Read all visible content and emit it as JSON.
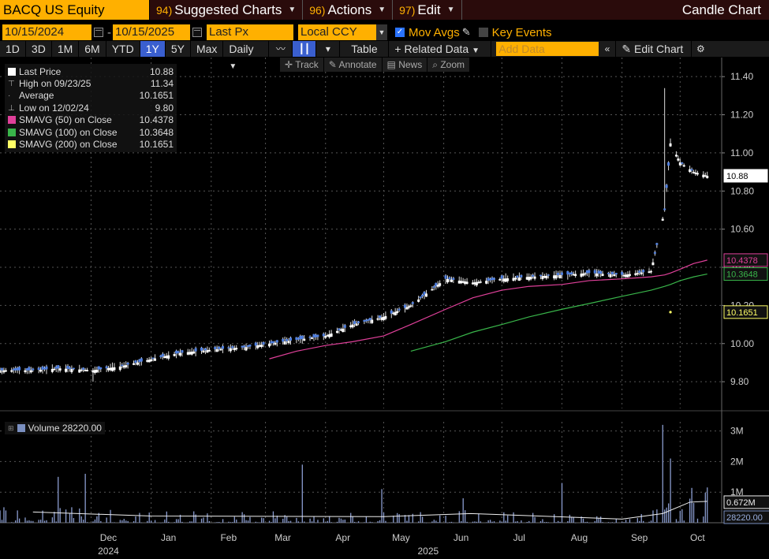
{
  "toolbar": {
    "ticker": "BACQ US Equity",
    "menus": [
      {
        "num": "94)",
        "label": "Suggested Charts"
      },
      {
        "num": "96)",
        "label": "Actions"
      },
      {
        "num": "97)",
        "label": "Edit"
      }
    ],
    "chart_kind": "Candle Chart"
  },
  "settings": {
    "start_date": "10/15/2024",
    "end_date": "10/15/2025",
    "field": "Last Px",
    "currency": "Local CCY",
    "mov_avgs_label": "Mov Avgs",
    "key_events_label": "Key Events"
  },
  "ranges": {
    "buttons": [
      "1D",
      "3D",
      "1M",
      "6M",
      "YTD",
      "1Y",
      "5Y",
      "Max"
    ],
    "selected": "1Y",
    "period": "Daily",
    "table_label": "Table",
    "related_label": "Related Data",
    "add_data_placeholder": "Add Data",
    "edit_chart_label": "Edit Chart"
  },
  "tools": [
    "Track",
    "Annotate",
    "News",
    "Zoom"
  ],
  "legend": [
    {
      "label": "Last Price",
      "value": "10.88",
      "color": "#ffffff"
    },
    {
      "label": "High on 09/23/25",
      "value": "11.34",
      "color": ""
    },
    {
      "label": "Average",
      "value": "10.1651",
      "color": ""
    },
    {
      "label": "Low on 12/02/24",
      "value": "9.80",
      "color": ""
    },
    {
      "label": "SMAVG (50)  on Close",
      "value": "10.4378",
      "color": "#e0409a"
    },
    {
      "label": "SMAVG (100)  on Close",
      "value": "10.3648",
      "color": "#39b54a"
    },
    {
      "label": "SMAVG (200)  on Close",
      "value": "10.1651",
      "color": "#ffff66"
    }
  ],
  "volume_legend": {
    "label": "Volume",
    "value": "28220.00"
  },
  "colors": {
    "accent": "#ffb000",
    "up": "#ffffff",
    "down": "#4f7fe0",
    "sma50": "#e0409a",
    "sma100": "#39b54a",
    "sma200": "#ffff66"
  },
  "chart_data": [
    {
      "type": "line",
      "x": [
        "2024-10-15",
        "2024-11-01",
        "2024-11-15",
        "2024-12-02",
        "2024-12-16",
        "2025-01-02",
        "2025-01-15",
        "2025-02-03",
        "2025-02-18",
        "2025-03-03",
        "2025-03-17",
        "2025-04-01",
        "2025-04-15",
        "2025-05-01",
        "2025-05-15",
        "2025-06-02",
        "2025-06-16",
        "2025-07-01",
        "2025-07-15",
        "2025-08-01",
        "2025-08-15",
        "2025-09-02",
        "2025-09-16",
        "2025-09-23",
        "2025-09-26",
        "2025-10-01",
        "2025-10-08",
        "2025-10-15"
      ],
      "series": [
        {
          "name": "Last Price",
          "values": [
            9.86,
            9.86,
            9.87,
            9.86,
            9.88,
            9.92,
            9.95,
            9.97,
            9.98,
            10.0,
            10.02,
            10.04,
            10.1,
            10.14,
            10.2,
            10.34,
            10.32,
            10.34,
            10.35,
            10.36,
            10.37,
            10.36,
            10.38,
            10.7,
            11.05,
            10.95,
            10.9,
            10.88
          ]
        },
        {
          "name": "SMAVG (50)  on Close",
          "values": [
            null,
            null,
            null,
            null,
            null,
            null,
            null,
            null,
            null,
            9.92,
            9.96,
            9.99,
            10.01,
            10.04,
            10.1,
            10.18,
            10.24,
            10.28,
            10.3,
            10.31,
            10.33,
            10.34,
            10.35,
            10.36,
            10.37,
            10.39,
            10.42,
            10.4378
          ]
        },
        {
          "name": "SMAVG (100)  on Close",
          "values": [
            null,
            null,
            null,
            null,
            null,
            null,
            null,
            null,
            null,
            null,
            null,
            null,
            null,
            null,
            9.96,
            10.01,
            10.06,
            10.1,
            10.14,
            10.18,
            10.21,
            10.25,
            10.28,
            10.3,
            10.31,
            10.33,
            10.35,
            10.3648
          ]
        }
      ],
      "high": {
        "date": "09/23/25",
        "value": 11.34
      },
      "low": {
        "date": "12/02/24",
        "value": 9.8
      },
      "average": 10.1651,
      "last": 10.88,
      "ylim": [
        9.66,
        11.5
      ],
      "yticks": [
        9.8,
        10.0,
        10.2,
        10.4,
        10.6,
        10.8,
        11.0,
        11.2,
        11.4
      ],
      "ytick_labels": [
        "9.80",
        "10.00",
        "10.20",
        "10.40",
        "10.60",
        "10.80",
        "11.00",
        "11.20",
        "11.40"
      ],
      "right_labels": [
        {
          "text": "10.88",
          "value": 10.88,
          "color": "#ffffff"
        },
        {
          "text": "10.4378",
          "value": 10.4378,
          "color": "#e0409a"
        },
        {
          "text": "10.3648",
          "value": 10.3648,
          "color": "#39b54a"
        },
        {
          "text": "10.1651",
          "value": 10.1651,
          "color": "#ffff66"
        }
      ],
      "xticks": [
        {
          "date": "2024-12-01",
          "label": "Dec"
        },
        {
          "date": "2025-01-01",
          "label": "Jan"
        },
        {
          "date": "2025-02-01",
          "label": "Feb"
        },
        {
          "date": "2025-03-01",
          "label": "Mar"
        },
        {
          "date": "2025-04-01",
          "label": "Apr"
        },
        {
          "date": "2025-05-01",
          "label": "May"
        },
        {
          "date": "2025-06-01",
          "label": "Jun"
        },
        {
          "date": "2025-07-01",
          "label": "Jul"
        },
        {
          "date": "2025-08-01",
          "label": "Aug"
        },
        {
          "date": "2025-09-01",
          "label": "Sep"
        },
        {
          "date": "2025-10-01",
          "label": "Oct"
        }
      ],
      "year_labels": [
        {
          "date": "2024-12-01",
          "label": "2024"
        },
        {
          "date": "2025-05-15",
          "label": "2025"
        }
      ]
    },
    {
      "type": "bar",
      "series_name": "Volume",
      "ylim": [
        0,
        3300000
      ],
      "yticks": [
        1000000,
        2000000,
        3000000
      ],
      "ytick_labels": [
        "1M",
        "2M",
        "3M"
      ],
      "spikes": [
        {
          "date": "2024-11-14",
          "value": 1500000
        },
        {
          "date": "2024-11-28",
          "value": 1600000
        },
        {
          "date": "2025-03-20",
          "value": 1900000
        },
        {
          "date": "2025-04-30",
          "value": 1100000
        },
        {
          "date": "2025-06-11",
          "value": 800000
        },
        {
          "date": "2025-08-01",
          "value": 1300000
        },
        {
          "date": "2025-09-22",
          "value": 3200000
        },
        {
          "date": "2025-09-26",
          "value": 2100000
        }
      ],
      "avg_line": [
        {
          "date": "2024-11-01",
          "value": 350000
        },
        {
          "date": "2025-01-01",
          "value": 220000
        },
        {
          "date": "2025-05-01",
          "value": 200000
        },
        {
          "date": "2025-06-15",
          "value": 300000
        },
        {
          "date": "2025-09-01",
          "value": 120000
        },
        {
          "date": "2025-09-22",
          "value": 300000
        },
        {
          "date": "2025-10-06",
          "value": 672000
        },
        {
          "date": "2025-10-15",
          "value": 700000
        }
      ],
      "right_labels": [
        {
          "text": "0.672M",
          "value": 672000
        },
        {
          "text": "28220.00",
          "value": 28220
        }
      ]
    }
  ]
}
